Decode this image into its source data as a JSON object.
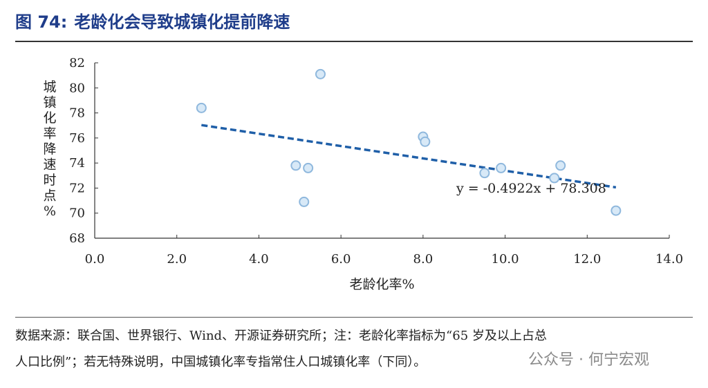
{
  "header": {
    "figure_number": "图 74:",
    "title": "老龄化会导致城镇化提前降速"
  },
  "chart_data": {
    "type": "scatter",
    "xlabel": "老龄化率%",
    "ylabel": [
      "城",
      "镇",
      "化",
      "率",
      "降",
      "速",
      "时",
      "点",
      "%"
    ],
    "xlim": [
      0,
      14
    ],
    "ylim": [
      68,
      82
    ],
    "x_ticks": [
      "0.0",
      "2.0",
      "4.0",
      "6.0",
      "8.0",
      "10.0",
      "12.0",
      "14.0"
    ],
    "y_ticks": [
      "68",
      "70",
      "72",
      "74",
      "76",
      "78",
      "80",
      "82"
    ],
    "points": [
      {
        "x": 2.6,
        "y": 78.4
      },
      {
        "x": 4.9,
        "y": 73.8
      },
      {
        "x": 5.1,
        "y": 70.9
      },
      {
        "x": 5.2,
        "y": 73.6
      },
      {
        "x": 5.5,
        "y": 81.1
      },
      {
        "x": 8.0,
        "y": 76.1
      },
      {
        "x": 8.05,
        "y": 75.7
      },
      {
        "x": 9.5,
        "y": 73.2
      },
      {
        "x": 9.9,
        "y": 73.6
      },
      {
        "x": 11.2,
        "y": 72.8
      },
      {
        "x": 11.35,
        "y": 73.8
      },
      {
        "x": 12.7,
        "y": 70.2
      }
    ],
    "trendline": {
      "slope": -0.4922,
      "intercept": 78.308,
      "x_range": [
        2.6,
        12.7
      ],
      "equation_label": "y = -0.4922x + 78.308",
      "color": "#1f5fa8"
    },
    "marker_fill": "#d8e9f7",
    "marker_stroke": "#8fb8dd",
    "grid": false,
    "legend": "none"
  },
  "footer": {
    "source_line1": "数据来源：联合国、世界银行、Wind、开源证券研究所；注：老龄化率指标为“65 岁及以上占总",
    "source_line2": "人口比例”；若无特殊说明，中国城镇化率专指常住人口城镇化率（下同）。",
    "watermark": "公众号 · 何宁宏观"
  }
}
